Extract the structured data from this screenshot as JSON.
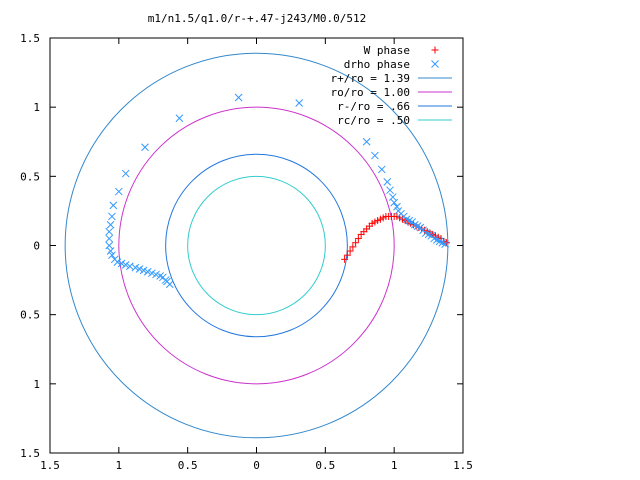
{
  "chart_data": {
    "type": "scatter",
    "title": "m1/n1.5/q1.0/r-+.47-j243/M0.0/512",
    "xlabel": "",
    "ylabel": "",
    "xlim": [
      -1.5,
      1.5
    ],
    "ylim": [
      -1.5,
      1.5
    ],
    "x_ticks": [
      -1.5,
      -1,
      -0.5,
      0,
      0.5,
      1,
      1.5
    ],
    "x_tick_labels": [
      "1.5",
      "1",
      "0.5",
      "0",
      "0.5",
      "1",
      "1.5"
    ],
    "y_ticks": [
      1.5,
      1,
      0.5,
      0,
      -0.5,
      -1,
      -1.5
    ],
    "y_tick_labels": [
      "1.5",
      "1",
      "0.5",
      "0",
      "0.5",
      "1",
      "1.5"
    ],
    "grid": false,
    "legend_position": "top-right",
    "legend": [
      {
        "label": "W phase",
        "style": "plus",
        "color": "#ff0000"
      },
      {
        "label": "drho phase",
        "style": "cross",
        "color": "#3399ff"
      },
      {
        "label": "r+/ro = 1.39",
        "style": "line",
        "color": "#3388cc"
      },
      {
        "label": "ro/ro = 1.00",
        "style": "line",
        "color": "#cc33cc"
      },
      {
        "label": "r-/ro = .66",
        "style": "line",
        "color": "#2277dd"
      },
      {
        "label": "rc/ro = .50",
        "style": "line",
        "color": "#33cccc"
      }
    ],
    "circles": [
      {
        "radius": 1.39,
        "color": "#3388cc"
      },
      {
        "radius": 1.0,
        "color": "#cc33cc"
      },
      {
        "radius": 0.66,
        "color": "#2277dd"
      },
      {
        "radius": 0.5,
        "color": "#33cccc"
      }
    ],
    "series": [
      {
        "name": "W phase",
        "marker": "plus",
        "color": "#ff0000",
        "x": [
          0.64,
          0.66,
          0.68,
          0.7,
          0.72,
          0.74,
          0.76,
          0.78,
          0.8,
          0.82,
          0.84,
          0.86,
          0.88,
          0.9,
          0.92,
          0.94,
          0.96,
          0.98,
          1.0,
          1.02,
          1.04,
          1.06,
          1.08,
          1.1,
          1.12,
          1.14,
          1.16,
          1.18,
          1.2,
          1.22,
          1.24,
          1.26,
          1.28,
          1.3,
          1.32,
          1.34,
          1.36,
          1.38
        ],
        "y": [
          -0.1,
          -0.07,
          -0.04,
          -0.01,
          0.02,
          0.05,
          0.08,
          0.1,
          0.12,
          0.14,
          0.16,
          0.17,
          0.18,
          0.19,
          0.2,
          0.21,
          0.21,
          0.21,
          0.21,
          0.21,
          0.2,
          0.19,
          0.18,
          0.17,
          0.16,
          0.15,
          0.14,
          0.13,
          0.12,
          0.11,
          0.1,
          0.09,
          0.08,
          0.07,
          0.06,
          0.05,
          0.03,
          0.02
        ]
      },
      {
        "name": "drho phase",
        "marker": "cross",
        "color": "#3399ff",
        "x": [
          -0.13,
          0.31,
          -0.56,
          -0.81,
          -0.95,
          -1.0,
          -1.04,
          -1.05,
          -1.06,
          -1.07,
          -1.07,
          -1.07,
          -1.06,
          -1.05,
          -1.03,
          -1.01,
          -0.98,
          -0.95,
          -0.92,
          -0.88,
          -0.85,
          -0.82,
          -0.79,
          -0.76,
          -0.73,
          -0.7,
          -0.68,
          -0.66,
          -0.65,
          -0.63,
          0.8,
          0.86,
          0.91,
          0.95,
          0.97,
          0.99,
          1.0,
          1.02,
          1.03,
          1.05,
          1.07,
          1.09,
          1.11,
          1.13,
          1.15,
          1.17,
          1.19,
          1.21,
          1.23,
          1.25,
          1.27,
          1.29,
          1.31,
          1.33,
          1.35,
          1.37
        ],
        "y": [
          1.07,
          1.03,
          0.92,
          0.71,
          0.52,
          0.39,
          0.29,
          0.21,
          0.15,
          0.1,
          0.05,
          0.0,
          -0.04,
          -0.07,
          -0.1,
          -0.12,
          -0.13,
          -0.14,
          -0.15,
          -0.16,
          -0.17,
          -0.18,
          -0.19,
          -0.2,
          -0.21,
          -0.22,
          -0.23,
          -0.25,
          -0.26,
          -0.28,
          0.75,
          0.65,
          0.55,
          0.46,
          0.4,
          0.35,
          0.31,
          0.28,
          0.25,
          0.23,
          0.21,
          0.19,
          0.18,
          0.17,
          0.15,
          0.14,
          0.13,
          0.11,
          0.09,
          0.08,
          0.07,
          0.05,
          0.04,
          0.03,
          0.02,
          0.01
        ]
      }
    ]
  }
}
